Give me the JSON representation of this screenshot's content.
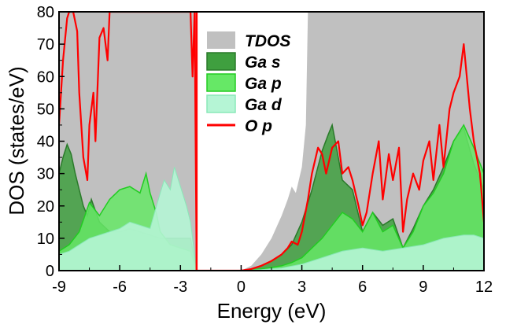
{
  "chart_data": {
    "type": "area",
    "title": "",
    "xlabel": "Energy (eV)",
    "ylabel": "DOS (states/eV)",
    "xlim": [
      -9,
      12
    ],
    "ylim": [
      0,
      80
    ],
    "xticks": [
      -9,
      -6,
      -3,
      0,
      3,
      6,
      9,
      12
    ],
    "yticks": [
      0,
      10,
      20,
      30,
      40,
      50,
      60,
      70,
      80
    ],
    "vertical_marker_x": -2.2,
    "legend_position": "top-right",
    "legend": [
      "TDOS",
      "Ga s",
      "Ga p",
      "Ga d",
      "O p"
    ],
    "colors": {
      "tdos": "#c0c0c0",
      "ga_s_fill": "#3f9f3f",
      "ga_s_line": "#2a7a2a",
      "ga_p_fill": "#66e866",
      "ga_p_line": "#22cc22",
      "ga_d_fill": "#b5f5d5",
      "ga_d_line": "#8ae8b8",
      "o_p": "#ff0000",
      "marker": "#ff0000"
    },
    "series": [
      {
        "name": "TDOS",
        "x": [
          -9,
          -2.3,
          -2.2,
          0,
          0.5,
          1,
          1.5,
          2,
          2.3,
          2.5,
          2.7,
          3,
          3.2,
          3.3,
          3.5,
          4,
          5,
          6,
          7,
          8,
          9,
          10,
          11,
          11.5,
          11.8,
          12
        ],
        "y": [
          80,
          80,
          0,
          0,
          1.5,
          5,
          10,
          17,
          22,
          26,
          24,
          32,
          45,
          80,
          80,
          80,
          80,
          80,
          80,
          80,
          80,
          80,
          80,
          80,
          80,
          80
        ]
      },
      {
        "name": "Ga s",
        "x": [
          -9,
          -8.8,
          -8.6,
          -8.4,
          -8.2,
          -8.0,
          -7.8,
          -7.6,
          -7.4,
          -7.0,
          -6.5,
          -6.0,
          -5.5,
          -5.0,
          -4.5,
          -4.0,
          -3.5,
          -3.0,
          -2.5,
          -2.2,
          0,
          0.5,
          1,
          1.5,
          2,
          2.5,
          3,
          3.5,
          4,
          4.3,
          4.5,
          4.8,
          5,
          5.5,
          6,
          6.5,
          7,
          7.5,
          8,
          8.5,
          9,
          9.5,
          10,
          10.5,
          11,
          11.5,
          12
        ],
        "y": [
          30,
          35,
          39,
          36,
          30,
          25,
          20,
          17,
          22,
          15,
          12,
          12,
          13,
          12,
          11,
          10,
          10,
          10,
          10,
          0,
          0,
          0.5,
          1.5,
          3,
          5,
          8,
          15,
          25,
          37,
          42,
          45,
          35,
          28,
          25,
          12,
          18,
          14,
          16,
          7,
          13,
          20,
          25,
          32,
          40,
          44,
          33,
          25
        ]
      },
      {
        "name": "Ga p",
        "x": [
          -9,
          -8.5,
          -8,
          -7.5,
          -7,
          -6.5,
          -6,
          -5.5,
          -5,
          -4.7,
          -4.5,
          -4.2,
          -4,
          -3.5,
          -3,
          -2.5,
          -2.2,
          0,
          0.5,
          1,
          1.5,
          2,
          2.5,
          3,
          3.5,
          4,
          4.5,
          5,
          5.5,
          6,
          6.5,
          7,
          7.5,
          8,
          8.5,
          9,
          9.5,
          10,
          10.5,
          11,
          11.5,
          12
        ],
        "y": [
          6,
          8,
          12,
          21,
          17,
          22,
          25,
          26,
          24,
          30,
          24,
          18,
          12,
          8,
          7,
          6,
          0,
          0,
          0.2,
          0.5,
          1,
          1.5,
          2.5,
          4,
          7,
          10,
          14,
          18,
          16,
          12,
          18,
          12,
          14,
          7,
          12,
          20,
          24,
          30,
          40,
          45,
          38,
          30
        ]
      },
      {
        "name": "Ga d",
        "x": [
          -9,
          -8.5,
          -8,
          -7.5,
          -7,
          -6.5,
          -6,
          -5.5,
          -5,
          -4.5,
          -4,
          -3.8,
          -3.5,
          -3.3,
          -3.0,
          -2.7,
          -2.5,
          -2.2,
          0,
          1,
          2,
          3,
          4,
          5,
          6,
          7,
          8,
          9,
          10,
          11,
          11.5,
          12
        ],
        "y": [
          5,
          6,
          8,
          10,
          11,
          12,
          13,
          15,
          14,
          13,
          24,
          28,
          25,
          32,
          26,
          20,
          15,
          0,
          0,
          0.3,
          0.8,
          2,
          4,
          6,
          7,
          6,
          7,
          8,
          10,
          11,
          11,
          10
        ]
      },
      {
        "name": "O p",
        "x": [
          -9,
          -8.8,
          -8.6,
          -8.5,
          -8.3,
          -8.1,
          -8.0,
          -7.8,
          -7.6,
          -7.5,
          -7.3,
          -7.2,
          -7.0,
          -6.8,
          -6.6,
          -6.5,
          -6.0,
          -5.5,
          -5.0,
          -4.5,
          -4.0,
          -3.5,
          -3.2,
          -3.0,
          -2.8,
          -2.6,
          -2.5,
          -2.4,
          -2.3,
          -2.2,
          0,
          0.5,
          1,
          1.5,
          2,
          2.3,
          2.5,
          2.8,
          3,
          3.3,
          3.5,
          3.8,
          4,
          4.2,
          4.5,
          4.8,
          5,
          5.3,
          5.5,
          5.8,
          6,
          6.2,
          6.5,
          6.8,
          7,
          7.3,
          7.5,
          7.8,
          8,
          8.2,
          8.5,
          8.8,
          9,
          9.3,
          9.5,
          9.8,
          10,
          10.3,
          10.5,
          10.8,
          11,
          11.3,
          11.5,
          11.8,
          12
        ],
        "y": [
          45,
          65,
          78,
          80,
          80,
          74,
          55,
          35,
          28,
          45,
          55,
          40,
          72,
          75,
          65,
          80,
          80,
          80,
          80,
          80,
          80,
          80,
          80,
          80,
          80,
          80,
          80,
          60,
          80,
          0,
          0,
          0.5,
          1.5,
          3,
          5,
          7,
          9,
          8,
          12,
          22,
          30,
          38,
          36,
          30,
          38,
          40,
          30,
          32,
          28,
          20,
          14,
          18,
          30,
          40,
          22,
          36,
          28,
          38,
          12,
          22,
          30,
          25,
          34,
          40,
          28,
          45,
          32,
          50,
          55,
          60,
          70,
          50,
          40,
          30,
          15
        ]
      }
    ]
  }
}
